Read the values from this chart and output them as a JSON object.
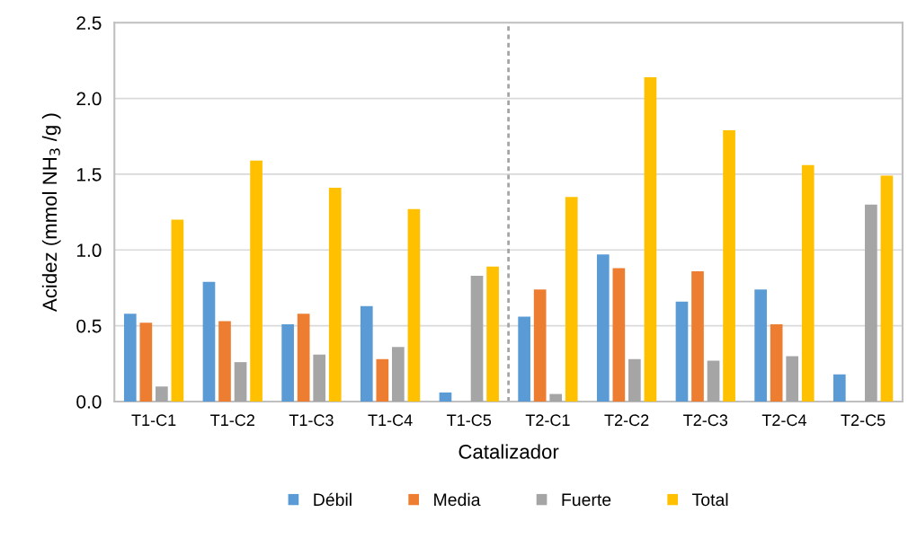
{
  "chart_data": {
    "type": "bar",
    "xlabel": "Catalizador",
    "ylabel": "Acidez (mmol NH$_{3}$ /g )",
    "categories": [
      "T1-C1",
      "T1-C2",
      "T1-C3",
      "T1-C4",
      "T1-C5",
      "T2-C1",
      "T2-C2",
      "T2-C3",
      "T2-C4",
      "T2-C5"
    ],
    "series": [
      {
        "name": "Débil",
        "color": "#5b9bd5",
        "values": [
          0.58,
          0.79,
          0.51,
          0.63,
          0.06,
          0.56,
          0.97,
          0.66,
          0.74,
          0.18
        ]
      },
      {
        "name": "Media",
        "color": "#ed7d31",
        "values": [
          0.52,
          0.53,
          0.58,
          0.28,
          null,
          0.74,
          0.88,
          0.86,
          0.51,
          null
        ]
      },
      {
        "name": "Fuerte",
        "color": "#a5a5a5",
        "values": [
          0.1,
          0.26,
          0.31,
          0.36,
          0.83,
          0.05,
          0.28,
          0.27,
          0.3,
          1.3
        ]
      },
      {
        "name": "Total",
        "color": "#ffc000",
        "values": [
          1.2,
          1.59,
          1.41,
          1.27,
          0.89,
          1.35,
          2.14,
          1.79,
          1.56,
          1.49
        ]
      }
    ],
    "ylim": [
      0,
      2.5
    ],
    "yticks": [
      {
        "value": 0,
        "label": "0.0"
      },
      {
        "value": 0.5,
        "label": "0.5"
      },
      {
        "value": 1,
        "label": "1.0"
      },
      {
        "value": 1.5,
        "label": "1.5"
      },
      {
        "value": 2,
        "label": "2.0"
      },
      {
        "value": 2.5,
        "label": "2.5"
      }
    ],
    "grid": "y",
    "legend": "bottom"
  }
}
